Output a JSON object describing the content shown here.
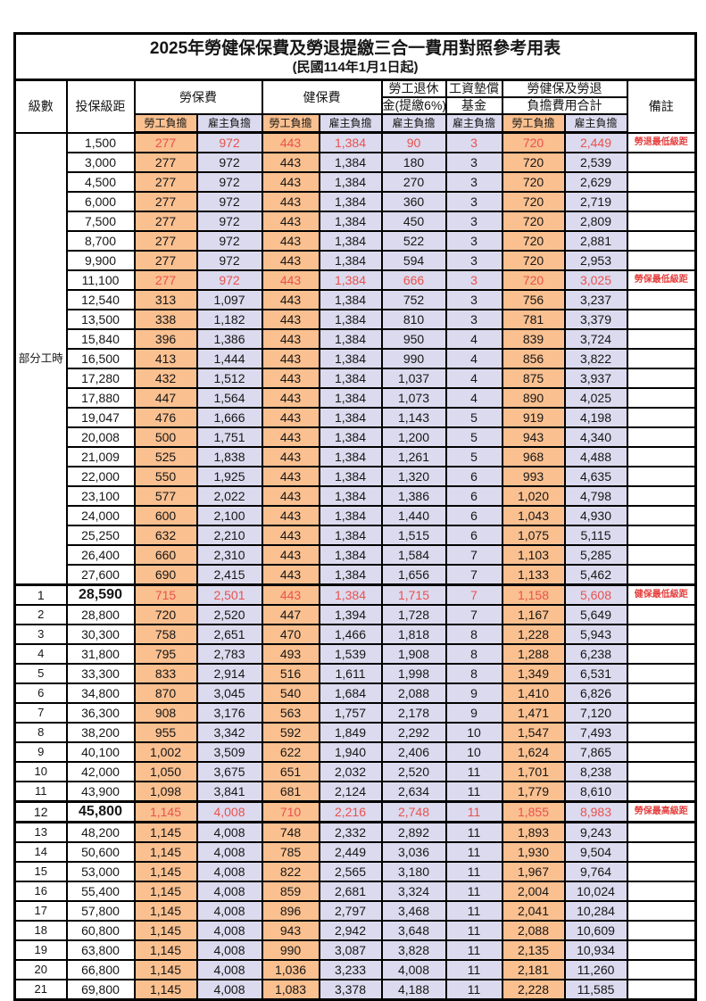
{
  "title": "2025年勞健保保費及勞退提繳三合一費用對照參考用表",
  "subtitle": "(民國114年1月1日起)",
  "colors": {
    "orange": "#FAC090",
    "lavender": "#DCDAEE",
    "red_value": "#E8524E",
    "red_remark": "#E43E3C"
  },
  "header": {
    "level": "級數",
    "bracket": "投保級距",
    "labor_ins": "勞保費",
    "health_ins": "健保費",
    "pension_line1": "勞工退休",
    "pension_line2": "金(提繳6%)",
    "fund_line1": "工資墊償",
    "fund_line2": "基金",
    "total_line1": "勞健保及勞退",
    "total_line2": "負擔費用合計",
    "remark": "備註",
    "employee": "勞工負擔",
    "employer": "雇主負擔"
  },
  "part_time": {
    "label": "部分工時",
    "span": 23
  },
  "columns": [
    {
      "key": "bracket",
      "cls": "c-bracket"
    },
    {
      "key": "li_emp",
      "cls": "orange"
    },
    {
      "key": "li_er",
      "cls": "lav"
    },
    {
      "key": "hi_emp",
      "cls": "orange"
    },
    {
      "key": "hi_er",
      "cls": "lav"
    },
    {
      "key": "pension",
      "cls": "lav"
    },
    {
      "key": "fund",
      "cls": "lav"
    },
    {
      "key": "tot_emp",
      "cls": "orange"
    },
    {
      "key": "tot_er",
      "cls": "lav"
    },
    {
      "key": "remark",
      "cls": "remark"
    }
  ],
  "rows": [
    {
      "level": "",
      "bracket": "1,500",
      "li_emp": "277",
      "li_er": "972",
      "hi_emp": "443",
      "hi_er": "1,384",
      "pension": "90",
      "fund": "3",
      "tot_emp": "720",
      "tot_er": "2,449",
      "remark": "勞退最低級距",
      "hl": true
    },
    {
      "level": "",
      "bracket": "3,000",
      "li_emp": "277",
      "li_er": "972",
      "hi_emp": "443",
      "hi_er": "1,384",
      "pension": "180",
      "fund": "3",
      "tot_emp": "720",
      "tot_er": "2,539",
      "remark": ""
    },
    {
      "level": "",
      "bracket": "4,500",
      "li_emp": "277",
      "li_er": "972",
      "hi_emp": "443",
      "hi_er": "1,384",
      "pension": "270",
      "fund": "3",
      "tot_emp": "720",
      "tot_er": "2,629",
      "remark": ""
    },
    {
      "level": "",
      "bracket": "6,000",
      "li_emp": "277",
      "li_er": "972",
      "hi_emp": "443",
      "hi_er": "1,384",
      "pension": "360",
      "fund": "3",
      "tot_emp": "720",
      "tot_er": "2,719",
      "remark": ""
    },
    {
      "level": "",
      "bracket": "7,500",
      "li_emp": "277",
      "li_er": "972",
      "hi_emp": "443",
      "hi_er": "1,384",
      "pension": "450",
      "fund": "3",
      "tot_emp": "720",
      "tot_er": "2,809",
      "remark": ""
    },
    {
      "level": "",
      "bracket": "8,700",
      "li_emp": "277",
      "li_er": "972",
      "hi_emp": "443",
      "hi_er": "1,384",
      "pension": "522",
      "fund": "3",
      "tot_emp": "720",
      "tot_er": "2,881",
      "remark": ""
    },
    {
      "level": "",
      "bracket": "9,900",
      "li_emp": "277",
      "li_er": "972",
      "hi_emp": "443",
      "hi_er": "1,384",
      "pension": "594",
      "fund": "3",
      "tot_emp": "720",
      "tot_er": "2,953",
      "remark": ""
    },
    {
      "level": "",
      "bracket": "11,100",
      "li_emp": "277",
      "li_er": "972",
      "hi_emp": "443",
      "hi_er": "1,384",
      "pension": "666",
      "fund": "3",
      "tot_emp": "720",
      "tot_er": "3,025",
      "remark": "勞保最低級距",
      "hl": true
    },
    {
      "level": "",
      "bracket": "12,540",
      "li_emp": "313",
      "li_er": "1,097",
      "hi_emp": "443",
      "hi_er": "1,384",
      "pension": "752",
      "fund": "3",
      "tot_emp": "756",
      "tot_er": "3,237",
      "remark": ""
    },
    {
      "level": "",
      "bracket": "13,500",
      "li_emp": "338",
      "li_er": "1,182",
      "hi_emp": "443",
      "hi_er": "1,384",
      "pension": "810",
      "fund": "3",
      "tot_emp": "781",
      "tot_er": "3,379",
      "remark": ""
    },
    {
      "level": "",
      "bracket": "15,840",
      "li_emp": "396",
      "li_er": "1,386",
      "hi_emp": "443",
      "hi_er": "1,384",
      "pension": "950",
      "fund": "4",
      "tot_emp": "839",
      "tot_er": "3,724",
      "remark": ""
    },
    {
      "level": "",
      "bracket": "16,500",
      "li_emp": "413",
      "li_er": "1,444",
      "hi_emp": "443",
      "hi_er": "1,384",
      "pension": "990",
      "fund": "4",
      "tot_emp": "856",
      "tot_er": "3,822",
      "remark": ""
    },
    {
      "level": "",
      "bracket": "17,280",
      "li_emp": "432",
      "li_er": "1,512",
      "hi_emp": "443",
      "hi_er": "1,384",
      "pension": "1,037",
      "fund": "4",
      "tot_emp": "875",
      "tot_er": "3,937",
      "remark": ""
    },
    {
      "level": "",
      "bracket": "17,880",
      "li_emp": "447",
      "li_er": "1,564",
      "hi_emp": "443",
      "hi_er": "1,384",
      "pension": "1,073",
      "fund": "4",
      "tot_emp": "890",
      "tot_er": "4,025",
      "remark": ""
    },
    {
      "level": "",
      "bracket": "19,047",
      "li_emp": "476",
      "li_er": "1,666",
      "hi_emp": "443",
      "hi_er": "1,384",
      "pension": "1,143",
      "fund": "5",
      "tot_emp": "919",
      "tot_er": "4,198",
      "remark": ""
    },
    {
      "level": "",
      "bracket": "20,008",
      "li_emp": "500",
      "li_er": "1,751",
      "hi_emp": "443",
      "hi_er": "1,384",
      "pension": "1,200",
      "fund": "5",
      "tot_emp": "943",
      "tot_er": "4,340",
      "remark": ""
    },
    {
      "level": "",
      "bracket": "21,009",
      "li_emp": "525",
      "li_er": "1,838",
      "hi_emp": "443",
      "hi_er": "1,384",
      "pension": "1,261",
      "fund": "5",
      "tot_emp": "968",
      "tot_er": "4,488",
      "remark": ""
    },
    {
      "level": "",
      "bracket": "22,000",
      "li_emp": "550",
      "li_er": "1,925",
      "hi_emp": "443",
      "hi_er": "1,384",
      "pension": "1,320",
      "fund": "6",
      "tot_emp": "993",
      "tot_er": "4,635",
      "remark": ""
    },
    {
      "level": "",
      "bracket": "23,100",
      "li_emp": "577",
      "li_er": "2,022",
      "hi_emp": "443",
      "hi_er": "1,384",
      "pension": "1,386",
      "fund": "6",
      "tot_emp": "1,020",
      "tot_er": "4,798",
      "remark": ""
    },
    {
      "level": "",
      "bracket": "24,000",
      "li_emp": "600",
      "li_er": "2,100",
      "hi_emp": "443",
      "hi_er": "1,384",
      "pension": "1,440",
      "fund": "6",
      "tot_emp": "1,043",
      "tot_er": "4,930",
      "remark": ""
    },
    {
      "level": "",
      "bracket": "25,250",
      "li_emp": "632",
      "li_er": "2,210",
      "hi_emp": "443",
      "hi_er": "1,384",
      "pension": "1,515",
      "fund": "6",
      "tot_emp": "1,075",
      "tot_er": "5,115",
      "remark": ""
    },
    {
      "level": "",
      "bracket": "26,400",
      "li_emp": "660",
      "li_er": "2,310",
      "hi_emp": "443",
      "hi_er": "1,384",
      "pension": "1,584",
      "fund": "7",
      "tot_emp": "1,103",
      "tot_er": "5,285",
      "remark": ""
    },
    {
      "level": "",
      "bracket": "27,600",
      "li_emp": "690",
      "li_er": "2,415",
      "hi_emp": "443",
      "hi_er": "1,384",
      "pension": "1,656",
      "fund": "7",
      "tot_emp": "1,133",
      "tot_er": "5,462",
      "remark": ""
    },
    {
      "level": "1",
      "bracket": "28,590",
      "li_emp": "715",
      "li_er": "2,501",
      "hi_emp": "443",
      "hi_er": "1,384",
      "pension": "1,715",
      "fund": "7",
      "tot_emp": "1,158",
      "tot_er": "5,608",
      "remark": "健保最低級距",
      "hl": true,
      "t_top": true,
      "big": true
    },
    {
      "level": "2",
      "bracket": "28,800",
      "li_emp": "720",
      "li_er": "2,520",
      "hi_emp": "447",
      "hi_er": "1,394",
      "pension": "1,728",
      "fund": "7",
      "tot_emp": "1,167",
      "tot_er": "5,649",
      "remark": ""
    },
    {
      "level": "3",
      "bracket": "30,300",
      "li_emp": "758",
      "li_er": "2,651",
      "hi_emp": "470",
      "hi_er": "1,466",
      "pension": "1,818",
      "fund": "8",
      "tot_emp": "1,228",
      "tot_er": "5,943",
      "remark": ""
    },
    {
      "level": "4",
      "bracket": "31,800",
      "li_emp": "795",
      "li_er": "2,783",
      "hi_emp": "493",
      "hi_er": "1,539",
      "pension": "1,908",
      "fund": "8",
      "tot_emp": "1,288",
      "tot_er": "6,238",
      "remark": ""
    },
    {
      "level": "5",
      "bracket": "33,300",
      "li_emp": "833",
      "li_er": "2,914",
      "hi_emp": "516",
      "hi_er": "1,611",
      "pension": "1,998",
      "fund": "8",
      "tot_emp": "1,349",
      "tot_er": "6,531",
      "remark": ""
    },
    {
      "level": "6",
      "bracket": "34,800",
      "li_emp": "870",
      "li_er": "3,045",
      "hi_emp": "540",
      "hi_er": "1,684",
      "pension": "2,088",
      "fund": "9",
      "tot_emp": "1,410",
      "tot_er": "6,826",
      "remark": ""
    },
    {
      "level": "7",
      "bracket": "36,300",
      "li_emp": "908",
      "li_er": "3,176",
      "hi_emp": "563",
      "hi_er": "1,757",
      "pension": "2,178",
      "fund": "9",
      "tot_emp": "1,471",
      "tot_er": "7,120",
      "remark": ""
    },
    {
      "level": "8",
      "bracket": "38,200",
      "li_emp": "955",
      "li_er": "3,342",
      "hi_emp": "592",
      "hi_er": "1,849",
      "pension": "2,292",
      "fund": "10",
      "tot_emp": "1,547",
      "tot_er": "7,493",
      "remark": ""
    },
    {
      "level": "9",
      "bracket": "40,100",
      "li_emp": "1,002",
      "li_er": "3,509",
      "hi_emp": "622",
      "hi_er": "1,940",
      "pension": "2,406",
      "fund": "10",
      "tot_emp": "1,624",
      "tot_er": "7,865",
      "remark": ""
    },
    {
      "level": "10",
      "bracket": "42,000",
      "li_emp": "1,050",
      "li_er": "3,675",
      "hi_emp": "651",
      "hi_er": "2,032",
      "pension": "2,520",
      "fund": "11",
      "tot_emp": "1,701",
      "tot_er": "8,238",
      "remark": ""
    },
    {
      "level": "11",
      "bracket": "43,900",
      "li_emp": "1,098",
      "li_er": "3,841",
      "hi_emp": "681",
      "hi_er": "2,124",
      "pension": "2,634",
      "fund": "11",
      "tot_emp": "1,779",
      "tot_er": "8,610",
      "remark": ""
    },
    {
      "level": "12",
      "bracket": "45,800",
      "li_emp": "1,145",
      "li_er": "4,008",
      "hi_emp": "710",
      "hi_er": "2,216",
      "pension": "2,748",
      "fund": "11",
      "tot_emp": "1,855",
      "tot_er": "8,983",
      "remark": "勞保最高級距",
      "hl": true,
      "t_top": true,
      "t_bot": true,
      "big": true
    },
    {
      "level": "13",
      "bracket": "48,200",
      "li_emp": "1,145",
      "li_er": "4,008",
      "hi_emp": "748",
      "hi_er": "2,332",
      "pension": "2,892",
      "fund": "11",
      "tot_emp": "1,893",
      "tot_er": "9,243",
      "remark": ""
    },
    {
      "level": "14",
      "bracket": "50,600",
      "li_emp": "1,145",
      "li_er": "4,008",
      "hi_emp": "785",
      "hi_er": "2,449",
      "pension": "3,036",
      "fund": "11",
      "tot_emp": "1,930",
      "tot_er": "9,504",
      "remark": ""
    },
    {
      "level": "15",
      "bracket": "53,000",
      "li_emp": "1,145",
      "li_er": "4,008",
      "hi_emp": "822",
      "hi_er": "2,565",
      "pension": "3,180",
      "fund": "11",
      "tot_emp": "1,967",
      "tot_er": "9,764",
      "remark": ""
    },
    {
      "level": "16",
      "bracket": "55,400",
      "li_emp": "1,145",
      "li_er": "4,008",
      "hi_emp": "859",
      "hi_er": "2,681",
      "pension": "3,324",
      "fund": "11",
      "tot_emp": "2,004",
      "tot_er": "10,024",
      "remark": ""
    },
    {
      "level": "17",
      "bracket": "57,800",
      "li_emp": "1,145",
      "li_er": "4,008",
      "hi_emp": "896",
      "hi_er": "2,797",
      "pension": "3,468",
      "fund": "11",
      "tot_emp": "2,041",
      "tot_er": "10,284",
      "remark": ""
    },
    {
      "level": "18",
      "bracket": "60,800",
      "li_emp": "1,145",
      "li_er": "4,008",
      "hi_emp": "943",
      "hi_er": "2,942",
      "pension": "3,648",
      "fund": "11",
      "tot_emp": "2,088",
      "tot_er": "10,609",
      "remark": ""
    },
    {
      "level": "19",
      "bracket": "63,800",
      "li_emp": "1,145",
      "li_er": "4,008",
      "hi_emp": "990",
      "hi_er": "3,087",
      "pension": "3,828",
      "fund": "11",
      "tot_emp": "2,135",
      "tot_er": "10,934",
      "remark": ""
    },
    {
      "level": "20",
      "bracket": "66,800",
      "li_emp": "1,145",
      "li_er": "4,008",
      "hi_emp": "1,036",
      "hi_er": "3,233",
      "pension": "4,008",
      "fund": "11",
      "tot_emp": "2,181",
      "tot_er": "11,260",
      "remark": ""
    },
    {
      "level": "21",
      "bracket": "69,800",
      "li_emp": "1,145",
      "li_er": "4,008",
      "hi_emp": "1,083",
      "hi_er": "3,378",
      "pension": "4,188",
      "fund": "11",
      "tot_emp": "2,228",
      "tot_er": "11,585",
      "remark": ""
    }
  ]
}
